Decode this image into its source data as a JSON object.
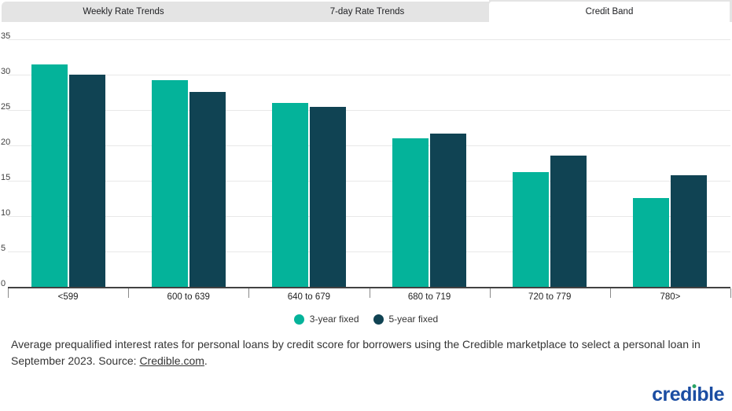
{
  "tabs": [
    {
      "label": "Weekly Rate Trends",
      "active": false
    },
    {
      "label": "7-day Rate Trends",
      "active": false
    },
    {
      "label": "Credit Band",
      "active": true
    }
  ],
  "chart_data": {
    "type": "bar",
    "title": "",
    "categories": [
      "<599",
      "600 to 639",
      "640 to 679",
      "680 to 719",
      "720 to 779",
      "780>"
    ],
    "series": [
      {
        "name": "3-year fixed",
        "color": "#04b39a",
        "values": [
          31.4,
          29.2,
          26.0,
          21.0,
          16.2,
          12.6
        ]
      },
      {
        "name": "5-year fixed",
        "color": "#104353",
        "values": [
          30.0,
          27.6,
          25.5,
          21.7,
          18.6,
          15.8
        ]
      }
    ],
    "xlabel": "",
    "ylabel": "",
    "ylim": [
      0,
      35
    ],
    "yticks": [
      0,
      5,
      10,
      15,
      20,
      25,
      30,
      35
    ],
    "grid": true,
    "legend_position": "bottom"
  },
  "caption": {
    "line1": "Average prequalified interest rates for personal loans by credit score for borrowers using the Credible marketplace to select a personal loan in",
    "line2_pre": "September 2023. Source: ",
    "link_text": "Credible.com",
    "suffix": "."
  },
  "logo": {
    "pre": "cred",
    "i_char": "ı",
    "post": "ble"
  },
  "colors": {
    "tab_grey": "#e4e4e4",
    "grid": "#e8e8e8",
    "axis": "#424242",
    "logo_blue": "#1b4da2",
    "logo_green": "#2aa365"
  }
}
